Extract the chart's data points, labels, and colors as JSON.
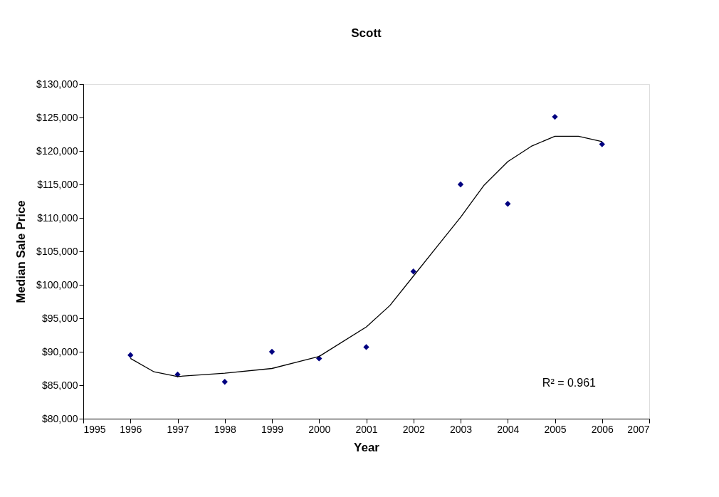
{
  "chart_data": {
    "type": "scatter",
    "title": "Scott",
    "xlabel": "Year",
    "ylabel": "Median Sale Price",
    "x": [
      1996,
      1997,
      1998,
      1999,
      2000,
      2001,
      2002,
      2003,
      2004,
      2005,
      2006
    ],
    "series": [
      {
        "color": "#000080",
        "marker": "diamond",
        "values": [
          89500,
          86600,
          85500,
          90000,
          89000,
          90700,
          102000,
          115000,
          112100,
          125100,
          121000
        ]
      },
      {
        "type": "line",
        "color": "#000000",
        "line_style": "solid",
        "x": [
          1996,
          1996.5,
          1997,
          1998,
          1999,
          2000,
          2001,
          2001.5,
          2002,
          2002.5,
          2003,
          2003.5,
          2004,
          2004.5,
          2005,
          2005.5,
          2006
        ],
        "values": [
          89000,
          87000,
          86300,
          86800,
          87500,
          89300,
          93700,
          96900,
          101300,
          105700,
          110100,
          114900,
          118400,
          120700,
          122200,
          122200,
          121400
        ]
      }
    ],
    "xlim": [
      1995,
      2007
    ],
    "xticks": [
      1995,
      1996,
      1997,
      1998,
      1999,
      2000,
      2001,
      2002,
      2003,
      2004,
      2005,
      2006,
      2007
    ],
    "ylim": [
      80000,
      130000
    ],
    "yticks": [
      {
        "value": 80000,
        "label": "$80,000"
      },
      {
        "value": 85000,
        "label": "$85,000"
      },
      {
        "value": 90000,
        "label": "$90,000"
      },
      {
        "value": 95000,
        "label": "$95,000"
      },
      {
        "value": 100000,
        "label": "$100,000"
      },
      {
        "value": 105000,
        "label": "$105,000"
      },
      {
        "value": 110000,
        "label": "$110,000"
      },
      {
        "value": 115000,
        "label": "$115,000"
      },
      {
        "value": 120000,
        "label": "$120,000"
      },
      {
        "value": 125000,
        "label": "$125,000"
      },
      {
        "value": 130000,
        "label": "$130,000"
      }
    ],
    "annotations": [
      "R² = 0.961"
    ],
    "grid": false
  }
}
